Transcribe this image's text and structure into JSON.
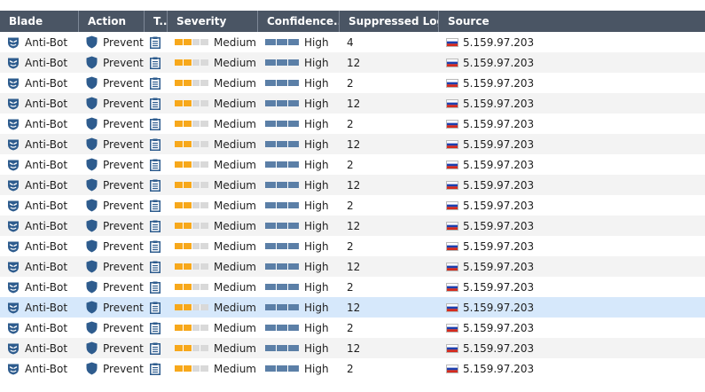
{
  "columns": [
    {
      "key": "blade",
      "label": "Blade"
    },
    {
      "key": "action",
      "label": "Action"
    },
    {
      "key": "type",
      "label": "T..."
    },
    {
      "key": "severity",
      "label": "Severity"
    },
    {
      "key": "confidence",
      "label": "Confidence..."
    },
    {
      "key": "suppressed",
      "label": "Suppressed Logs"
    },
    {
      "key": "source",
      "label": "Source"
    }
  ],
  "colors": {
    "header_bg": "#4a5564",
    "severity_medium": "#f7a81b",
    "confidence_high": "#5b7fa7",
    "selected_row": "#d6e8fb",
    "shield": "#2e5c8e"
  },
  "icons": {
    "blade": "anti-bot-icon",
    "action": "shield-icon",
    "type": "clipboard-log-icon",
    "source": "russia-flag-icon"
  },
  "selected_row_index": 13,
  "rows": [
    {
      "blade": "Anti-Bot",
      "action": "Prevent",
      "severity": "Medium",
      "severity_level": 0.5,
      "confidence": "High",
      "suppressed": "4",
      "source": "5.159.97.203"
    },
    {
      "blade": "Anti-Bot",
      "action": "Prevent",
      "severity": "Medium",
      "severity_level": 0.5,
      "confidence": "High",
      "suppressed": "12",
      "source": "5.159.97.203"
    },
    {
      "blade": "Anti-Bot",
      "action": "Prevent",
      "severity": "Medium",
      "severity_level": 0.5,
      "confidence": "High",
      "suppressed": "2",
      "source": "5.159.97.203"
    },
    {
      "blade": "Anti-Bot",
      "action": "Prevent",
      "severity": "Medium",
      "severity_level": 0.5,
      "confidence": "High",
      "suppressed": "12",
      "source": "5.159.97.203"
    },
    {
      "blade": "Anti-Bot",
      "action": "Prevent",
      "severity": "Medium",
      "severity_level": 0.5,
      "confidence": "High",
      "suppressed": "2",
      "source": "5.159.97.203"
    },
    {
      "blade": "Anti-Bot",
      "action": "Prevent",
      "severity": "Medium",
      "severity_level": 0.5,
      "confidence": "High",
      "suppressed": "12",
      "source": "5.159.97.203"
    },
    {
      "blade": "Anti-Bot",
      "action": "Prevent",
      "severity": "Medium",
      "severity_level": 0.5,
      "confidence": "High",
      "suppressed": "2",
      "source": "5.159.97.203"
    },
    {
      "blade": "Anti-Bot",
      "action": "Prevent",
      "severity": "Medium",
      "severity_level": 0.5,
      "confidence": "High",
      "suppressed": "12",
      "source": "5.159.97.203"
    },
    {
      "blade": "Anti-Bot",
      "action": "Prevent",
      "severity": "Medium",
      "severity_level": 0.5,
      "confidence": "High",
      "suppressed": "2",
      "source": "5.159.97.203"
    },
    {
      "blade": "Anti-Bot",
      "action": "Prevent",
      "severity": "Medium",
      "severity_level": 0.5,
      "confidence": "High",
      "suppressed": "12",
      "source": "5.159.97.203"
    },
    {
      "blade": "Anti-Bot",
      "action": "Prevent",
      "severity": "Medium",
      "severity_level": 0.5,
      "confidence": "High",
      "suppressed": "2",
      "source": "5.159.97.203"
    },
    {
      "blade": "Anti-Bot",
      "action": "Prevent",
      "severity": "Medium",
      "severity_level": 0.5,
      "confidence": "High",
      "suppressed": "12",
      "source": "5.159.97.203"
    },
    {
      "blade": "Anti-Bot",
      "action": "Prevent",
      "severity": "Medium",
      "severity_level": 0.5,
      "confidence": "High",
      "suppressed": "2",
      "source": "5.159.97.203"
    },
    {
      "blade": "Anti-Bot",
      "action": "Prevent",
      "severity": "Medium",
      "severity_level": 0.5,
      "confidence": "High",
      "suppressed": "12",
      "source": "5.159.97.203"
    },
    {
      "blade": "Anti-Bot",
      "action": "Prevent",
      "severity": "Medium",
      "severity_level": 0.5,
      "confidence": "High",
      "suppressed": "2",
      "source": "5.159.97.203"
    },
    {
      "blade": "Anti-Bot",
      "action": "Prevent",
      "severity": "Medium",
      "severity_level": 0.5,
      "confidence": "High",
      "suppressed": "12",
      "source": "5.159.97.203"
    },
    {
      "blade": "Anti-Bot",
      "action": "Prevent",
      "severity": "Medium",
      "severity_level": 0.5,
      "confidence": "High",
      "suppressed": "2",
      "source": "5.159.97.203"
    }
  ]
}
